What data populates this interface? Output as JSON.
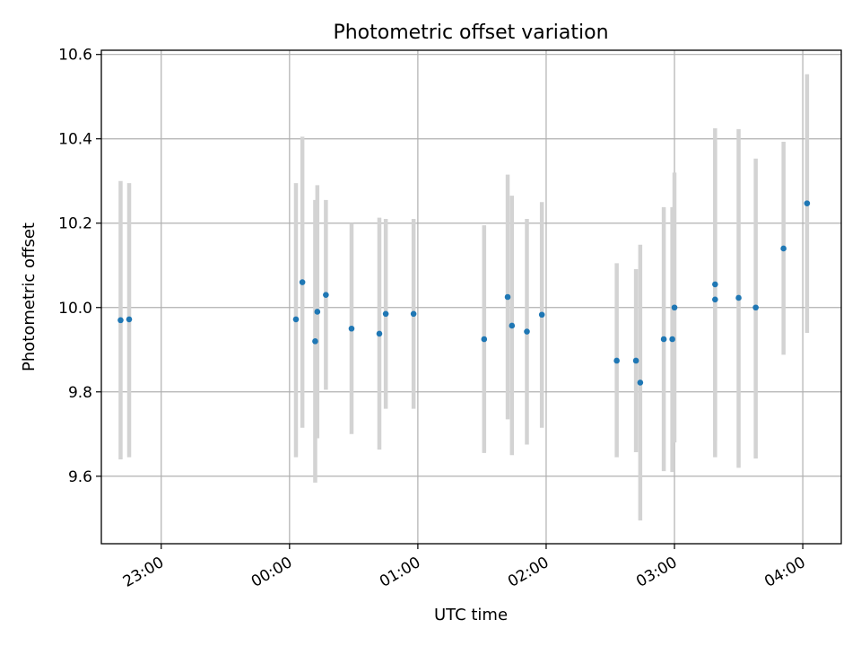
{
  "chart_data": {
    "type": "scatter",
    "title": "Photometric offset variation",
    "xlabel": "UTC time",
    "ylabel": "Photometric offset",
    "xlim": [
      "22:32",
      "04:18"
    ],
    "ylim": [
      9.44,
      10.61
    ],
    "x_ticks": [
      "23:00",
      "00:00",
      "01:00",
      "02:00",
      "03:00",
      "04:00"
    ],
    "y_ticks": [
      9.6,
      9.8,
      10.0,
      10.2,
      10.4,
      10.6
    ],
    "grid": true,
    "colors": {
      "points": "#1f77b4",
      "error_bars": "#d3d3d3",
      "grid": "#b0b0b0"
    },
    "points": [
      {
        "x": "22:41",
        "y": 9.97,
        "ylow": 9.64,
        "yhigh": 10.3
      },
      {
        "x": "22:45",
        "y": 9.972,
        "ylow": 9.645,
        "yhigh": 10.295
      },
      {
        "x": "00:03",
        "y": 9.972,
        "ylow": 9.645,
        "yhigh": 10.295
      },
      {
        "x": "00:06",
        "y": 10.06,
        "ylow": 9.715,
        "yhigh": 10.405
      },
      {
        "x": "00:12",
        "y": 9.92,
        "ylow": 9.585,
        "yhigh": 10.255
      },
      {
        "x": "00:13",
        "y": 9.99,
        "ylow": 9.69,
        "yhigh": 10.29
      },
      {
        "x": "00:17",
        "y": 10.03,
        "ylow": 9.805,
        "yhigh": 10.255
      },
      {
        "x": "00:29",
        "y": 9.95,
        "ylow": 9.7,
        "yhigh": 10.2
      },
      {
        "x": "00:42",
        "y": 9.938,
        "ylow": 9.663,
        "yhigh": 10.213
      },
      {
        "x": "00:45",
        "y": 9.985,
        "ylow": 9.76,
        "yhigh": 10.21
      },
      {
        "x": "00:58",
        "y": 9.985,
        "ylow": 9.76,
        "yhigh": 10.21
      },
      {
        "x": "01:31",
        "y": 9.925,
        "ylow": 9.655,
        "yhigh": 10.195
      },
      {
        "x": "01:42",
        "y": 10.025,
        "ylow": 9.735,
        "yhigh": 10.315
      },
      {
        "x": "01:44",
        "y": 9.957,
        "ylow": 9.65,
        "yhigh": 10.265
      },
      {
        "x": "01:51",
        "y": 9.943,
        "ylow": 9.675,
        "yhigh": 10.21
      },
      {
        "x": "01:58",
        "y": 9.983,
        "ylow": 9.715,
        "yhigh": 10.25
      },
      {
        "x": "02:33",
        "y": 9.874,
        "ylow": 9.645,
        "yhigh": 10.105
      },
      {
        "x": "02:42",
        "y": 9.874,
        "ylow": 9.657,
        "yhigh": 10.091
      },
      {
        "x": "02:44",
        "y": 9.822,
        "ylow": 9.495,
        "yhigh": 10.149
      },
      {
        "x": "02:55",
        "y": 9.925,
        "ylow": 9.612,
        "yhigh": 10.238
      },
      {
        "x": "02:59",
        "y": 9.925,
        "ylow": 9.61,
        "yhigh": 10.238
      },
      {
        "x": "03:00",
        "y": 10.0,
        "ylow": 9.68,
        "yhigh": 10.32
      },
      {
        "x": "03:19",
        "y": 10.055,
        "ylow": 9.685,
        "yhigh": 10.425
      },
      {
        "x": "03:19",
        "y": 10.019,
        "ylow": 9.645,
        "yhigh": 10.395
      },
      {
        "x": "03:30",
        "y": 10.023,
        "ylow": 9.62,
        "yhigh": 10.423
      },
      {
        "x": "03:38",
        "y": 10.0,
        "ylow": 9.642,
        "yhigh": 10.353
      },
      {
        "x": "03:51",
        "y": 10.14,
        "ylow": 9.888,
        "yhigh": 10.393
      },
      {
        "x": "04:02",
        "y": 10.247,
        "ylow": 9.94,
        "yhigh": 10.553
      }
    ]
  }
}
